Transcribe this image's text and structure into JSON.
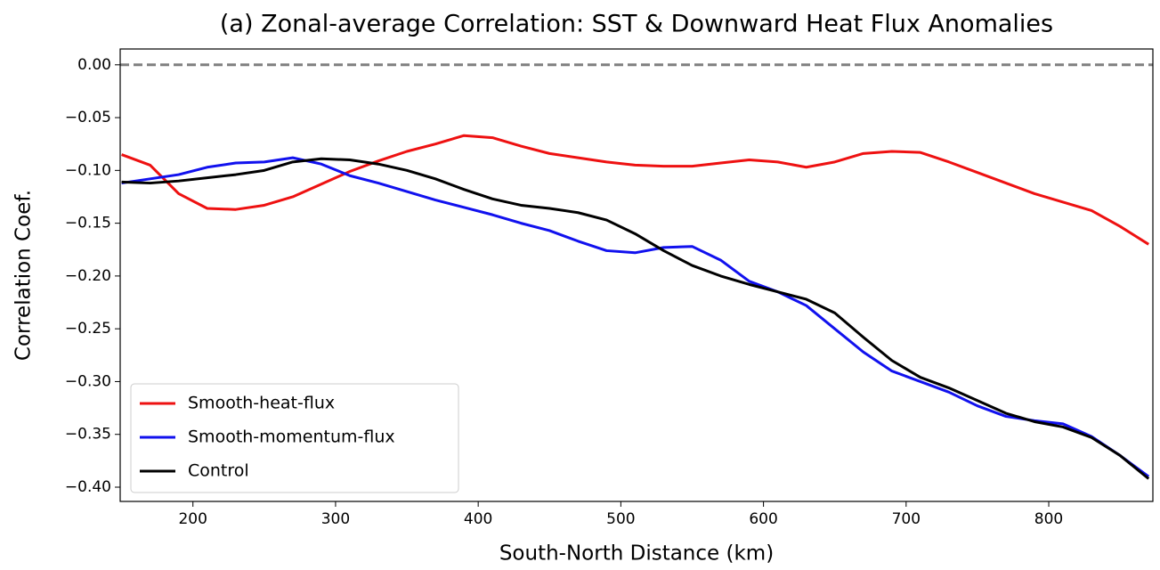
{
  "chart_data": {
    "type": "line",
    "title": "(a) Zonal-average Correlation: SST & Downward Heat Flux Anomalies",
    "x_label": "South-North Distance (km)",
    "y_label": "Correlation Coef.",
    "x": [
      150,
      170,
      190,
      210,
      230,
      250,
      270,
      290,
      310,
      330,
      350,
      370,
      390,
      410,
      430,
      450,
      470,
      490,
      510,
      530,
      550,
      570,
      590,
      610,
      630,
      650,
      670,
      690,
      710,
      730,
      750,
      770,
      790,
      810,
      830,
      850,
      870
    ],
    "series": [
      {
        "name": "Smooth-heat-flux",
        "color": "#ee1111",
        "values": [
          -0.085,
          -0.095,
          -0.122,
          -0.136,
          -0.137,
          -0.133,
          -0.125,
          -0.113,
          -0.101,
          -0.091,
          -0.082,
          -0.075,
          -0.067,
          -0.069,
          -0.077,
          -0.084,
          -0.088,
          -0.092,
          -0.095,
          -0.096,
          -0.096,
          -0.093,
          -0.09,
          -0.092,
          -0.097,
          -0.092,
          -0.084,
          -0.082,
          -0.083,
          -0.092,
          -0.102,
          -0.112,
          -0.122,
          -0.13,
          -0.138,
          -0.153,
          -0.17
        ]
      },
      {
        "name": "Smooth-momentum-flux",
        "color": "#1111ee",
        "values": [
          -0.112,
          -0.108,
          -0.104,
          -0.097,
          -0.093,
          -0.092,
          -0.088,
          -0.094,
          -0.105,
          -0.112,
          -0.12,
          -0.128,
          -0.135,
          -0.142,
          -0.15,
          -0.157,
          -0.167,
          -0.176,
          -0.178,
          -0.173,
          -0.172,
          -0.185,
          -0.205,
          -0.215,
          -0.228,
          -0.25,
          -0.272,
          -0.29,
          -0.3,
          -0.31,
          -0.323,
          -0.333,
          -0.337,
          -0.34,
          -0.352,
          -0.37,
          -0.39
        ]
      },
      {
        "name": "Control",
        "color": "#000000",
        "values": [
          -0.111,
          -0.112,
          -0.11,
          -0.107,
          -0.104,
          -0.1,
          -0.092,
          -0.089,
          -0.09,
          -0.094,
          -0.1,
          -0.108,
          -0.118,
          -0.127,
          -0.133,
          -0.136,
          -0.14,
          -0.147,
          -0.16,
          -0.176,
          -0.19,
          -0.2,
          -0.208,
          -0.215,
          -0.222,
          -0.235,
          -0.258,
          -0.28,
          -0.296,
          -0.306,
          -0.318,
          -0.33,
          -0.338,
          -0.343,
          -0.353,
          -0.37,
          -0.392
        ]
      }
    ],
    "xlim": [
      149,
      873
    ],
    "ylim": [
      -0.4135,
      0.015
    ],
    "xticks": [
      200,
      300,
      400,
      500,
      600,
      700,
      800
    ],
    "yticks": [
      {
        "value": 0,
        "label": "0.00"
      },
      {
        "value": -0.05,
        "label": "−0.05"
      },
      {
        "value": -0.1,
        "label": "−0.10"
      },
      {
        "value": -0.15,
        "label": "−0.15"
      },
      {
        "value": -0.2,
        "label": "−0.20"
      },
      {
        "value": -0.25,
        "label": "−0.25"
      },
      {
        "value": -0.3,
        "label": "−0.30"
      },
      {
        "value": -0.35,
        "label": "−0.35"
      },
      {
        "value": -0.4,
        "label": "−0.40"
      }
    ],
    "hline": 0,
    "legend": "lower left"
  }
}
